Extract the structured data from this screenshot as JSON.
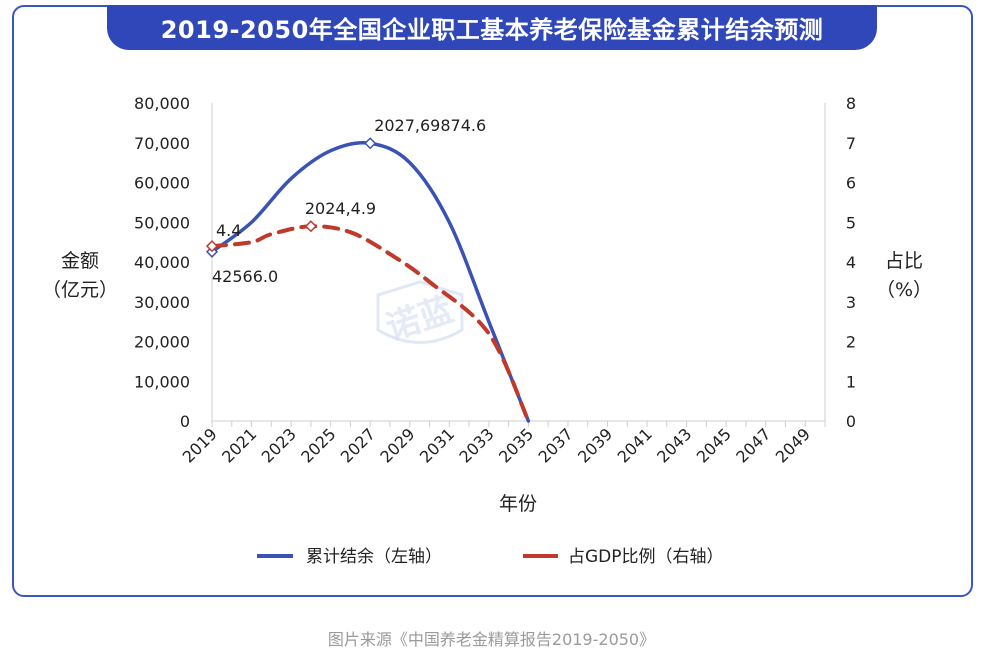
{
  "chart_data": {
    "type": "line",
    "title": "2019-2050年全国企业职工基本养老保险基金累计结余预测",
    "xlabel": "年份",
    "ylabel_left": [
      "金额",
      "（亿元）"
    ],
    "ylabel_right": [
      "占比",
      "（%）"
    ],
    "x_range": [
      2019,
      2050
    ],
    "x_tick_labels": [
      "2019",
      "2021",
      "2023",
      "2025",
      "2027",
      "2029",
      "2031",
      "2033",
      "2035",
      "2037",
      "2039",
      "2041",
      "2043",
      "2045",
      "2047",
      "2049"
    ],
    "y_left_range": [
      0,
      80000
    ],
    "y_left_tick_labels": [
      "0",
      "10,000",
      "20,000",
      "30,000",
      "40,000",
      "50,000",
      "60,000",
      "70,000",
      "80,000"
    ],
    "y_right_range": [
      0,
      8
    ],
    "y_right_tick_labels": [
      "0",
      "1",
      "2",
      "3",
      "4",
      "5",
      "6",
      "7",
      "8"
    ],
    "grid": false,
    "legend_position": "bottom",
    "series": [
      {
        "name": "累计结余（左轴）",
        "axis": "left",
        "color": "#3a52b5",
        "style": "solid",
        "x": [
          2019,
          2021,
          2023,
          2025,
          2027,
          2029,
          2031,
          2033,
          2035
        ],
        "y": [
          42566.0,
          50000,
          61000,
          68000,
          69874.6,
          65000,
          50000,
          25000,
          0
        ]
      },
      {
        "name": "占GDP比例（右轴）",
        "axis": "right",
        "color": "#c0392b",
        "style": "dashed",
        "x": [
          2019,
          2021,
          2022,
          2024,
          2026,
          2028,
          2030,
          2033,
          2035
        ],
        "y": [
          4.4,
          4.5,
          4.7,
          4.9,
          4.75,
          4.2,
          3.5,
          2.2,
          0
        ]
      }
    ],
    "annotations": [
      {
        "series": 0,
        "x": 2019,
        "y": 42566.0,
        "text": "42566.0"
      },
      {
        "series": 0,
        "x": 2027,
        "y": 69874.6,
        "text": "2027,69874.6"
      },
      {
        "series": 1,
        "x": 2019,
        "y": 4.4,
        "text": "4.4"
      },
      {
        "series": 1,
        "x": 2024,
        "y": 4.9,
        "text": "2024,4.9"
      }
    ],
    "watermark": "诺蓝"
  },
  "caption": "图片来源《中国养老金精算报告2019-2050》"
}
